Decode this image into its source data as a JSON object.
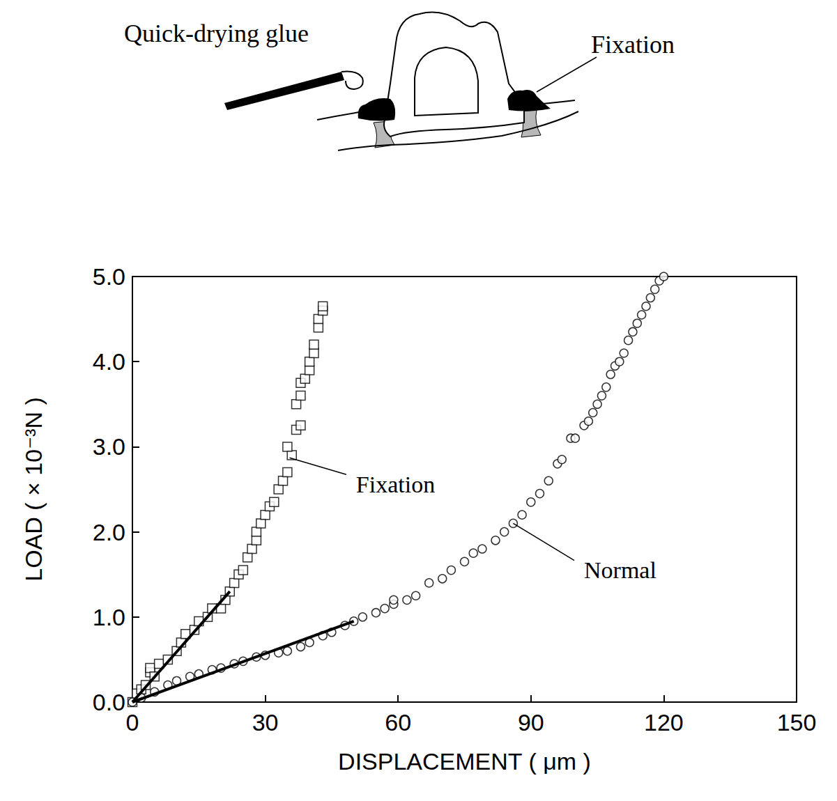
{
  "diagram": {
    "glue_label": "Quick-drying glue",
    "fixation_label": "Fixation"
  },
  "chart_data": {
    "type": "scatter",
    "x_label": "DISPLACEMENT ( μm )",
    "y_label": "LOAD ( × 10⁻³N )",
    "xlim": [
      0,
      150
    ],
    "xticks": [
      0,
      30,
      60,
      90,
      120,
      150
    ],
    "ylim": [
      0,
      5
    ],
    "yticks": [
      {
        "value": 0,
        "label": "0.0"
      },
      {
        "value": 1,
        "label": "1.0"
      },
      {
        "value": 2,
        "label": "2.0"
      },
      {
        "value": 3,
        "label": "3.0"
      },
      {
        "value": 4,
        "label": "4.0"
      },
      {
        "value": 5,
        "label": "5.0"
      }
    ],
    "grid": false,
    "series": [
      {
        "type": "scatter",
        "marker": "square",
        "color": "#000000",
        "x": [
          0,
          1,
          2,
          3,
          4,
          4,
          5,
          6,
          8,
          10,
          11,
          12,
          14,
          15,
          17,
          18,
          20,
          21,
          22,
          23,
          24,
          25,
          26,
          27,
          28,
          28,
          29,
          30,
          31,
          32,
          33,
          34,
          35,
          36,
          35,
          37,
          38,
          37,
          38,
          38,
          39,
          40,
          40,
          41,
          41,
          42,
          42,
          43,
          43
        ],
        "values": [
          0,
          0.1,
          0.15,
          0.2,
          0.35,
          0.4,
          0.3,
          0.45,
          0.5,
          0.6,
          0.7,
          0.8,
          0.85,
          0.95,
          1.0,
          1.1,
          1.1,
          1.2,
          1.3,
          1.4,
          1.5,
          1.55,
          1.7,
          1.8,
          1.9,
          2.0,
          2.1,
          2.2,
          2.3,
          2.35,
          2.5,
          2.6,
          2.7,
          2.9,
          3.0,
          3.2,
          3.25,
          3.5,
          3.6,
          3.75,
          3.8,
          3.9,
          4.0,
          4.1,
          4.2,
          4.4,
          4.5,
          4.6,
          4.65
        ]
      },
      {
        "type": "scatter",
        "marker": "circle",
        "color": "#000000",
        "x": [
          0,
          2,
          5,
          8,
          10,
          13,
          15,
          18,
          20,
          23,
          25,
          28,
          30,
          33,
          35,
          38,
          40,
          43,
          45,
          48,
          50,
          52,
          55,
          57,
          59,
          59,
          62,
          64,
          67,
          70,
          72,
          75,
          77,
          79,
          82,
          84,
          86,
          88,
          90,
          92,
          94,
          96,
          97,
          99,
          100,
          102,
          103,
          104,
          105,
          106,
          107,
          108,
          109,
          110,
          111,
          112,
          113,
          114,
          115,
          116,
          117,
          118,
          119,
          120
        ],
        "values": [
          0,
          0.05,
          0.12,
          0.2,
          0.25,
          0.3,
          0.33,
          0.38,
          0.4,
          0.45,
          0.48,
          0.53,
          0.55,
          0.58,
          0.6,
          0.65,
          0.7,
          0.78,
          0.82,
          0.9,
          0.95,
          1.0,
          1.05,
          1.1,
          1.15,
          1.2,
          1.2,
          1.25,
          1.4,
          1.45,
          1.55,
          1.65,
          1.75,
          1.8,
          1.9,
          2.0,
          2.1,
          2.2,
          2.35,
          2.45,
          2.6,
          2.8,
          2.85,
          3.1,
          3.1,
          3.25,
          3.3,
          3.4,
          3.5,
          3.6,
          3.7,
          3.85,
          3.95,
          4.0,
          4.1,
          4.25,
          4.35,
          4.45,
          4.55,
          4.65,
          4.75,
          4.85,
          4.95,
          5.0
        ]
      },
      {
        "type": "line",
        "line_style": "solid",
        "color": "#000000",
        "x": [
          0,
          22
        ],
        "values": [
          0,
          1.3
        ]
      },
      {
        "type": "line",
        "line_style": "solid",
        "color": "#000000",
        "x": [
          0,
          50
        ],
        "values": [
          0,
          0.95
        ]
      }
    ],
    "annotations": [
      {
        "text": "Fixation",
        "x": 50.5,
        "y": 2.56,
        "arrow_x": 35.5,
        "arrow_y": 2.87
      },
      {
        "text": "Normal",
        "x": 102,
        "y": 1.55,
        "arrow_x": 86,
        "arrow_y": 2.1
      }
    ]
  }
}
